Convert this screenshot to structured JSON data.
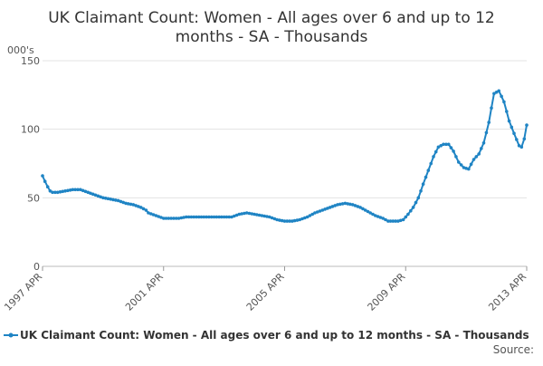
{
  "chart_data": {
    "type": "line",
    "title": "UK Claimant Count: Women - All ages over 6 and up to 12 months - SA - Thousands",
    "title_lines": [
      "UK Claimant Count: Women - All ages over 6 and up to 12",
      "months - SA - Thousands"
    ],
    "ylabel": "000's",
    "ylim": [
      0,
      150
    ],
    "yticks": [
      0,
      50,
      100,
      150
    ],
    "xlim": [
      1997.25,
      2013.25
    ],
    "xticks": [
      {
        "x": 1997.25,
        "label": "1997 APR"
      },
      {
        "x": 2001.25,
        "label": "2001 APR"
      },
      {
        "x": 2005.25,
        "label": "2005 APR"
      },
      {
        "x": 2009.25,
        "label": "2009 APR"
      },
      {
        "x": 2013.25,
        "label": "2013 APR"
      }
    ],
    "grid": true,
    "legend_position": "bottom",
    "source_label": "Source:",
    "color": "#1f84c4",
    "series": [
      {
        "name": "UK Claimant Count: Women - All ages over 6 and up to 12 months - SA - Thousands",
        "points": [
          [
            1997.25,
            66
          ],
          [
            1997.33,
            62
          ],
          [
            1997.42,
            58
          ],
          [
            1997.5,
            55
          ],
          [
            1997.58,
            54
          ],
          [
            1997.75,
            54
          ],
          [
            1998.0,
            55
          ],
          [
            1998.25,
            56
          ],
          [
            1998.5,
            56
          ],
          [
            1998.75,
            54
          ],
          [
            1999.0,
            52
          ],
          [
            1999.25,
            50
          ],
          [
            1999.5,
            49
          ],
          [
            1999.75,
            48
          ],
          [
            2000.0,
            46
          ],
          [
            2000.25,
            45
          ],
          [
            2000.5,
            43
          ],
          [
            2000.67,
            41
          ],
          [
            2000.75,
            39
          ],
          [
            2001.0,
            37
          ],
          [
            2001.25,
            35
          ],
          [
            2001.5,
            35
          ],
          [
            2001.75,
            35
          ],
          [
            2002.0,
            36
          ],
          [
            2002.25,
            36
          ],
          [
            2002.5,
            36
          ],
          [
            2002.75,
            36
          ],
          [
            2003.0,
            36
          ],
          [
            2003.25,
            36
          ],
          [
            2003.5,
            36
          ],
          [
            2003.75,
            38
          ],
          [
            2004.0,
            39
          ],
          [
            2004.25,
            38
          ],
          [
            2004.5,
            37
          ],
          [
            2004.75,
            36
          ],
          [
            2005.0,
            34
          ],
          [
            2005.25,
            33
          ],
          [
            2005.5,
            33
          ],
          [
            2005.75,
            34
          ],
          [
            2006.0,
            36
          ],
          [
            2006.25,
            39
          ],
          [
            2006.5,
            41
          ],
          [
            2006.75,
            43
          ],
          [
            2007.0,
            45
          ],
          [
            2007.25,
            46
          ],
          [
            2007.5,
            45
          ],
          [
            2007.75,
            43
          ],
          [
            2008.0,
            40
          ],
          [
            2008.25,
            37
          ],
          [
            2008.5,
            35
          ],
          [
            2008.67,
            33
          ],
          [
            2008.75,
            33
          ],
          [
            2009.0,
            33
          ],
          [
            2009.17,
            34
          ],
          [
            2009.33,
            38
          ],
          [
            2009.5,
            43
          ],
          [
            2009.67,
            50
          ],
          [
            2009.83,
            60
          ],
          [
            2010.0,
            70
          ],
          [
            2010.17,
            80
          ],
          [
            2010.33,
            87
          ],
          [
            2010.5,
            89
          ],
          [
            2010.67,
            89
          ],
          [
            2010.83,
            84
          ],
          [
            2011.0,
            76
          ],
          [
            2011.17,
            72
          ],
          [
            2011.33,
            71
          ],
          [
            2011.5,
            78
          ],
          [
            2011.67,
            82
          ],
          [
            2011.83,
            90
          ],
          [
            2012.0,
            105
          ],
          [
            2012.17,
            126
          ],
          [
            2012.33,
            128
          ],
          [
            2012.5,
            120
          ],
          [
            2012.67,
            106
          ],
          [
            2012.83,
            97
          ],
          [
            2013.0,
            88
          ],
          [
            2013.08,
            87
          ],
          [
            2013.17,
            93
          ],
          [
            2013.25,
            103
          ]
        ]
      }
    ]
  }
}
